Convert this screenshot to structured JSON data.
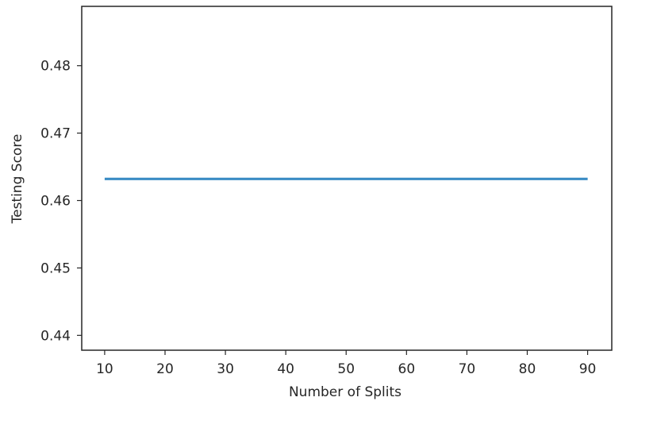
{
  "chart_data": {
    "type": "line",
    "xlabel": "Number of Splits",
    "ylabel": "Testing Score",
    "x_ticks": [
      10,
      20,
      30,
      40,
      50,
      60,
      70,
      80,
      90
    ],
    "x_tick_labels": [
      "10",
      "20",
      "30",
      "40",
      "50",
      "60",
      "70",
      "80",
      "90"
    ],
    "y_ticks": [
      0.44,
      0.45,
      0.46,
      0.47,
      0.48
    ],
    "y_tick_labels": [
      "0.44",
      "0.45",
      "0.46",
      "0.47",
      "0.48"
    ],
    "xlim": [
      6.2,
      94
    ],
    "ylim": [
      0.4378,
      0.4888
    ],
    "grid": false,
    "series": [
      {
        "color": "#3a8cc4",
        "x": [
          10,
          20,
          30,
          40,
          50,
          60,
          70,
          80,
          90
        ],
        "y": [
          0.4632,
          0.4632,
          0.4632,
          0.4632,
          0.4632,
          0.4632,
          0.4632,
          0.4632,
          0.4632
        ]
      }
    ]
  }
}
